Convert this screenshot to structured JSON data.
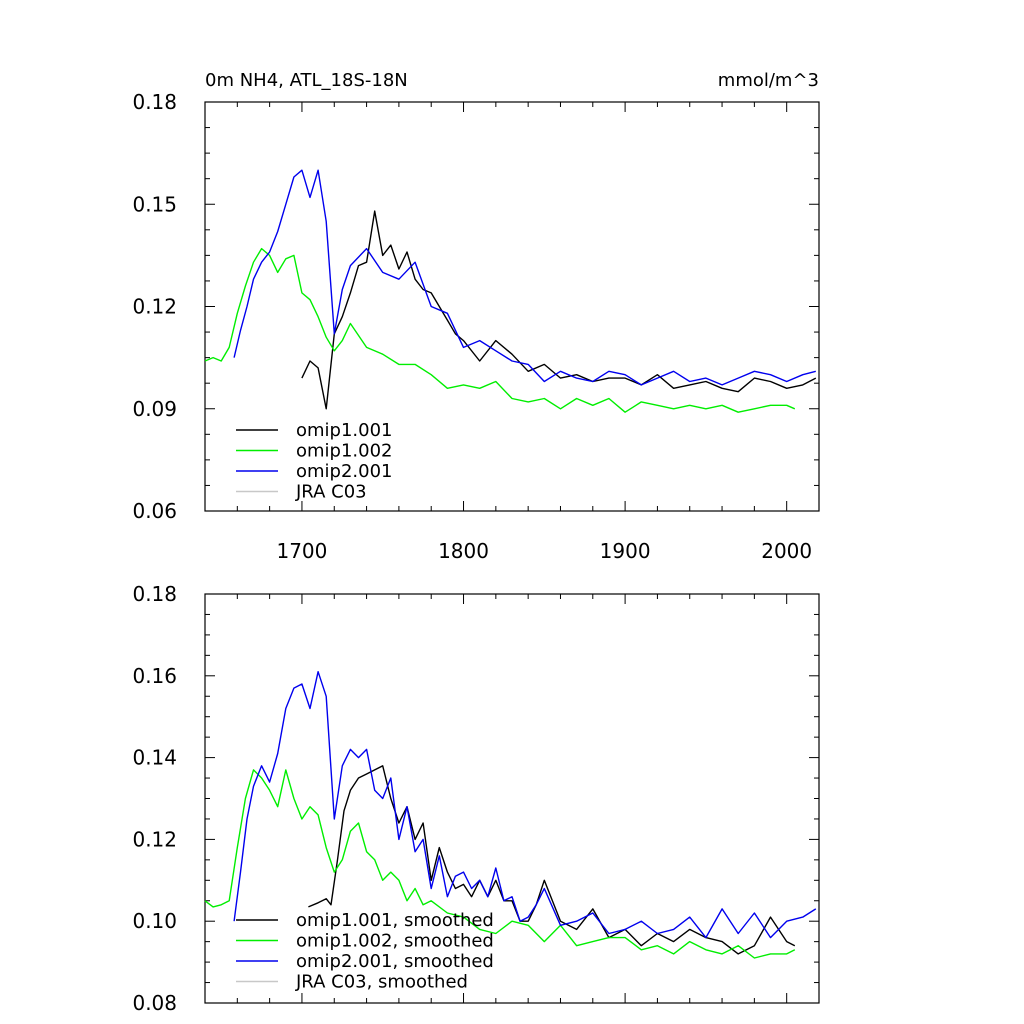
{
  "chart_data": [
    {
      "type": "line",
      "title": "0m NH4, ATL_18S-18N",
      "units": "mmol/m^3",
      "xlim": [
        1640,
        2020
      ],
      "ylim": [
        0.06,
        0.18
      ],
      "xticks": [
        1700,
        1800,
        1900,
        2000
      ],
      "yticks": [
        0.06,
        0.09,
        0.12,
        0.15,
        0.18
      ],
      "ytick_labels": [
        "0.06",
        "0.09",
        "0.12",
        "0.15",
        "0.18"
      ],
      "legend_position": "bottom-left",
      "series": [
        {
          "name": "omip1.001",
          "color": "#000000",
          "x": [
            1700,
            1705,
            1710,
            1715,
            1720,
            1725,
            1730,
            1735,
            1740,
            1745,
            1750,
            1755,
            1760,
            1765,
            1770,
            1775,
            1780,
            1785,
            1790,
            1795,
            1800,
            1810,
            1820,
            1830,
            1840,
            1850,
            1860,
            1870,
            1880,
            1890,
            1900,
            1910,
            1920,
            1930,
            1940,
            1950,
            1960,
            1970,
            1980,
            1990,
            2000,
            2010,
            2018
          ],
          "y": [
            0.099,
            0.104,
            0.102,
            0.09,
            0.112,
            0.117,
            0.124,
            0.132,
            0.133,
            0.148,
            0.135,
            0.138,
            0.131,
            0.136,
            0.128,
            0.125,
            0.124,
            0.12,
            0.116,
            0.112,
            0.11,
            0.104,
            0.11,
            0.106,
            0.101,
            0.103,
            0.099,
            0.1,
            0.098,
            0.099,
            0.099,
            0.097,
            0.1,
            0.096,
            0.097,
            0.098,
            0.096,
            0.095,
            0.099,
            0.098,
            0.096,
            0.097,
            0.099
          ]
        },
        {
          "name": "omip1.002",
          "color": "#00ee00",
          "x": [
            1640,
            1645,
            1650,
            1655,
            1660,
            1665,
            1670,
            1675,
            1680,
            1685,
            1690,
            1695,
            1700,
            1705,
            1710,
            1715,
            1720,
            1725,
            1730,
            1740,
            1750,
            1760,
            1770,
            1780,
            1790,
            1800,
            1810,
            1820,
            1830,
            1840,
            1850,
            1860,
            1870,
            1880,
            1890,
            1900,
            1910,
            1920,
            1930,
            1940,
            1950,
            1960,
            1970,
            1980,
            1990,
            2000,
            2005
          ],
          "y": [
            0.104,
            0.105,
            0.104,
            0.108,
            0.118,
            0.126,
            0.133,
            0.137,
            0.135,
            0.13,
            0.134,
            0.135,
            0.124,
            0.122,
            0.117,
            0.111,
            0.107,
            0.11,
            0.115,
            0.108,
            0.106,
            0.103,
            0.103,
            0.1,
            0.096,
            0.097,
            0.096,
            0.098,
            0.093,
            0.092,
            0.093,
            0.09,
            0.093,
            0.091,
            0.093,
            0.089,
            0.092,
            0.091,
            0.09,
            0.091,
            0.09,
            0.091,
            0.089,
            0.09,
            0.091,
            0.091,
            0.09
          ]
        },
        {
          "name": "omip2.001",
          "color": "#0000ee",
          "x": [
            1658,
            1662,
            1666,
            1670,
            1675,
            1680,
            1685,
            1690,
            1695,
            1700,
            1705,
            1710,
            1715,
            1720,
            1725,
            1730,
            1740,
            1750,
            1760,
            1770,
            1780,
            1790,
            1800,
            1810,
            1820,
            1830,
            1840,
            1850,
            1860,
            1870,
            1880,
            1890,
            1900,
            1910,
            1920,
            1930,
            1940,
            1950,
            1960,
            1970,
            1980,
            1990,
            2000,
            2010,
            2018
          ],
          "y": [
            0.105,
            0.113,
            0.12,
            0.128,
            0.133,
            0.136,
            0.142,
            0.15,
            0.158,
            0.16,
            0.152,
            0.16,
            0.145,
            0.112,
            0.125,
            0.132,
            0.137,
            0.13,
            0.128,
            0.133,
            0.12,
            0.118,
            0.108,
            0.11,
            0.107,
            0.104,
            0.103,
            0.098,
            0.101,
            0.099,
            0.098,
            0.101,
            0.1,
            0.097,
            0.099,
            0.101,
            0.098,
            0.099,
            0.097,
            0.099,
            0.101,
            0.1,
            0.098,
            0.1,
            0.101
          ]
        },
        {
          "name": "JRA C03",
          "color": "#c8c8c8",
          "x": [],
          "y": []
        }
      ]
    },
    {
      "type": "line",
      "title": "",
      "xlim": [
        1640,
        2020
      ],
      "ylim": [
        0.08,
        0.18
      ],
      "xticks": [
        1700,
        1800,
        1900,
        2000
      ],
      "yticks": [
        0.08,
        0.1,
        0.12,
        0.14,
        0.16,
        0.18
      ],
      "ytick_labels": [
        "0.08",
        "0.10",
        "0.12",
        "0.14",
        "0.16",
        "0.18"
      ],
      "legend_position": "bottom-left",
      "series": [
        {
          "name": "omip1.001, smoothed",
          "color": "#000000",
          "x": [
            1704,
            1710,
            1715,
            1718,
            1722,
            1726,
            1730,
            1735,
            1740,
            1745,
            1750,
            1755,
            1760,
            1765,
            1770,
            1775,
            1780,
            1785,
            1790,
            1795,
            1800,
            1805,
            1810,
            1815,
            1820,
            1825,
            1830,
            1835,
            1840,
            1845,
            1850,
            1860,
            1870,
            1880,
            1890,
            1900,
            1910,
            1920,
            1930,
            1940,
            1950,
            1960,
            1970,
            1980,
            1990,
            2000,
            2005
          ],
          "y": [
            0.1035,
            0.1045,
            0.1055,
            0.104,
            0.115,
            0.127,
            0.132,
            0.135,
            0.136,
            0.137,
            0.138,
            0.13,
            0.124,
            0.128,
            0.12,
            0.124,
            0.11,
            0.118,
            0.112,
            0.108,
            0.109,
            0.106,
            0.11,
            0.106,
            0.11,
            0.105,
            0.105,
            0.1,
            0.1,
            0.104,
            0.11,
            0.1,
            0.098,
            0.103,
            0.096,
            0.098,
            0.094,
            0.097,
            0.095,
            0.098,
            0.096,
            0.095,
            0.092,
            0.094,
            0.101,
            0.095,
            0.094
          ]
        },
        {
          "name": "omip1.002, smoothed",
          "color": "#00ee00",
          "x": [
            1640,
            1645,
            1650,
            1655,
            1660,
            1665,
            1670,
            1675,
            1680,
            1685,
            1690,
            1695,
            1700,
            1705,
            1710,
            1715,
            1720,
            1725,
            1730,
            1735,
            1740,
            1745,
            1750,
            1755,
            1760,
            1765,
            1770,
            1775,
            1780,
            1790,
            1800,
            1810,
            1820,
            1830,
            1840,
            1850,
            1860,
            1870,
            1880,
            1890,
            1900,
            1910,
            1920,
            1930,
            1940,
            1950,
            1960,
            1970,
            1980,
            1990,
            2000,
            2005
          ],
          "y": [
            0.105,
            0.1035,
            0.104,
            0.105,
            0.118,
            0.13,
            0.137,
            0.135,
            0.132,
            0.128,
            0.137,
            0.13,
            0.125,
            0.128,
            0.126,
            0.118,
            0.112,
            0.115,
            0.122,
            0.124,
            0.117,
            0.115,
            0.11,
            0.112,
            0.11,
            0.105,
            0.108,
            0.104,
            0.105,
            0.102,
            0.101,
            0.098,
            0.097,
            0.1,
            0.099,
            0.095,
            0.099,
            0.094,
            0.095,
            0.096,
            0.096,
            0.093,
            0.094,
            0.092,
            0.095,
            0.093,
            0.092,
            0.094,
            0.091,
            0.092,
            0.092,
            0.093
          ]
        },
        {
          "name": "omip2.001, smoothed",
          "color": "#0000ee",
          "x": [
            1658,
            1662,
            1666,
            1670,
            1675,
            1680,
            1685,
            1690,
            1695,
            1700,
            1705,
            1710,
            1715,
            1720,
            1725,
            1730,
            1735,
            1740,
            1745,
            1750,
            1755,
            1760,
            1765,
            1770,
            1775,
            1780,
            1785,
            1790,
            1795,
            1800,
            1805,
            1810,
            1815,
            1820,
            1825,
            1830,
            1835,
            1840,
            1845,
            1850,
            1860,
            1870,
            1880,
            1890,
            1900,
            1910,
            1920,
            1930,
            1940,
            1950,
            1960,
            1970,
            1980,
            1990,
            2000,
            2010,
            2018
          ],
          "y": [
            0.1,
            0.112,
            0.125,
            0.133,
            0.138,
            0.134,
            0.141,
            0.152,
            0.157,
            0.158,
            0.152,
            0.161,
            0.155,
            0.125,
            0.138,
            0.142,
            0.14,
            0.142,
            0.132,
            0.13,
            0.135,
            0.12,
            0.128,
            0.117,
            0.12,
            0.108,
            0.116,
            0.106,
            0.111,
            0.112,
            0.108,
            0.11,
            0.106,
            0.113,
            0.105,
            0.106,
            0.1,
            0.101,
            0.104,
            0.108,
            0.099,
            0.1,
            0.102,
            0.097,
            0.098,
            0.1,
            0.097,
            0.098,
            0.101,
            0.096,
            0.103,
            0.097,
            0.102,
            0.096,
            0.1,
            0.101,
            0.103
          ]
        },
        {
          "name": "JRA C03, smoothed",
          "color": "#c8c8c8",
          "x": [],
          "y": []
        }
      ]
    }
  ]
}
